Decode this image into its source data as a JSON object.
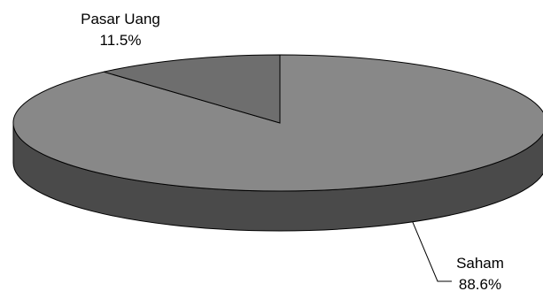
{
  "chart_data": {
    "type": "pie",
    "title": "",
    "slices": [
      {
        "label": "Saham",
        "value_text": "88.6%",
        "value": 88.6
      },
      {
        "label": "Pasar Uang",
        "value_text": "11.5%",
        "value": 11.5
      }
    ]
  },
  "colors": {
    "saham_top": "#888888",
    "saham_side": "#4a4a4a",
    "pasar_top": "#6e6e6e",
    "outline": "#000000"
  }
}
